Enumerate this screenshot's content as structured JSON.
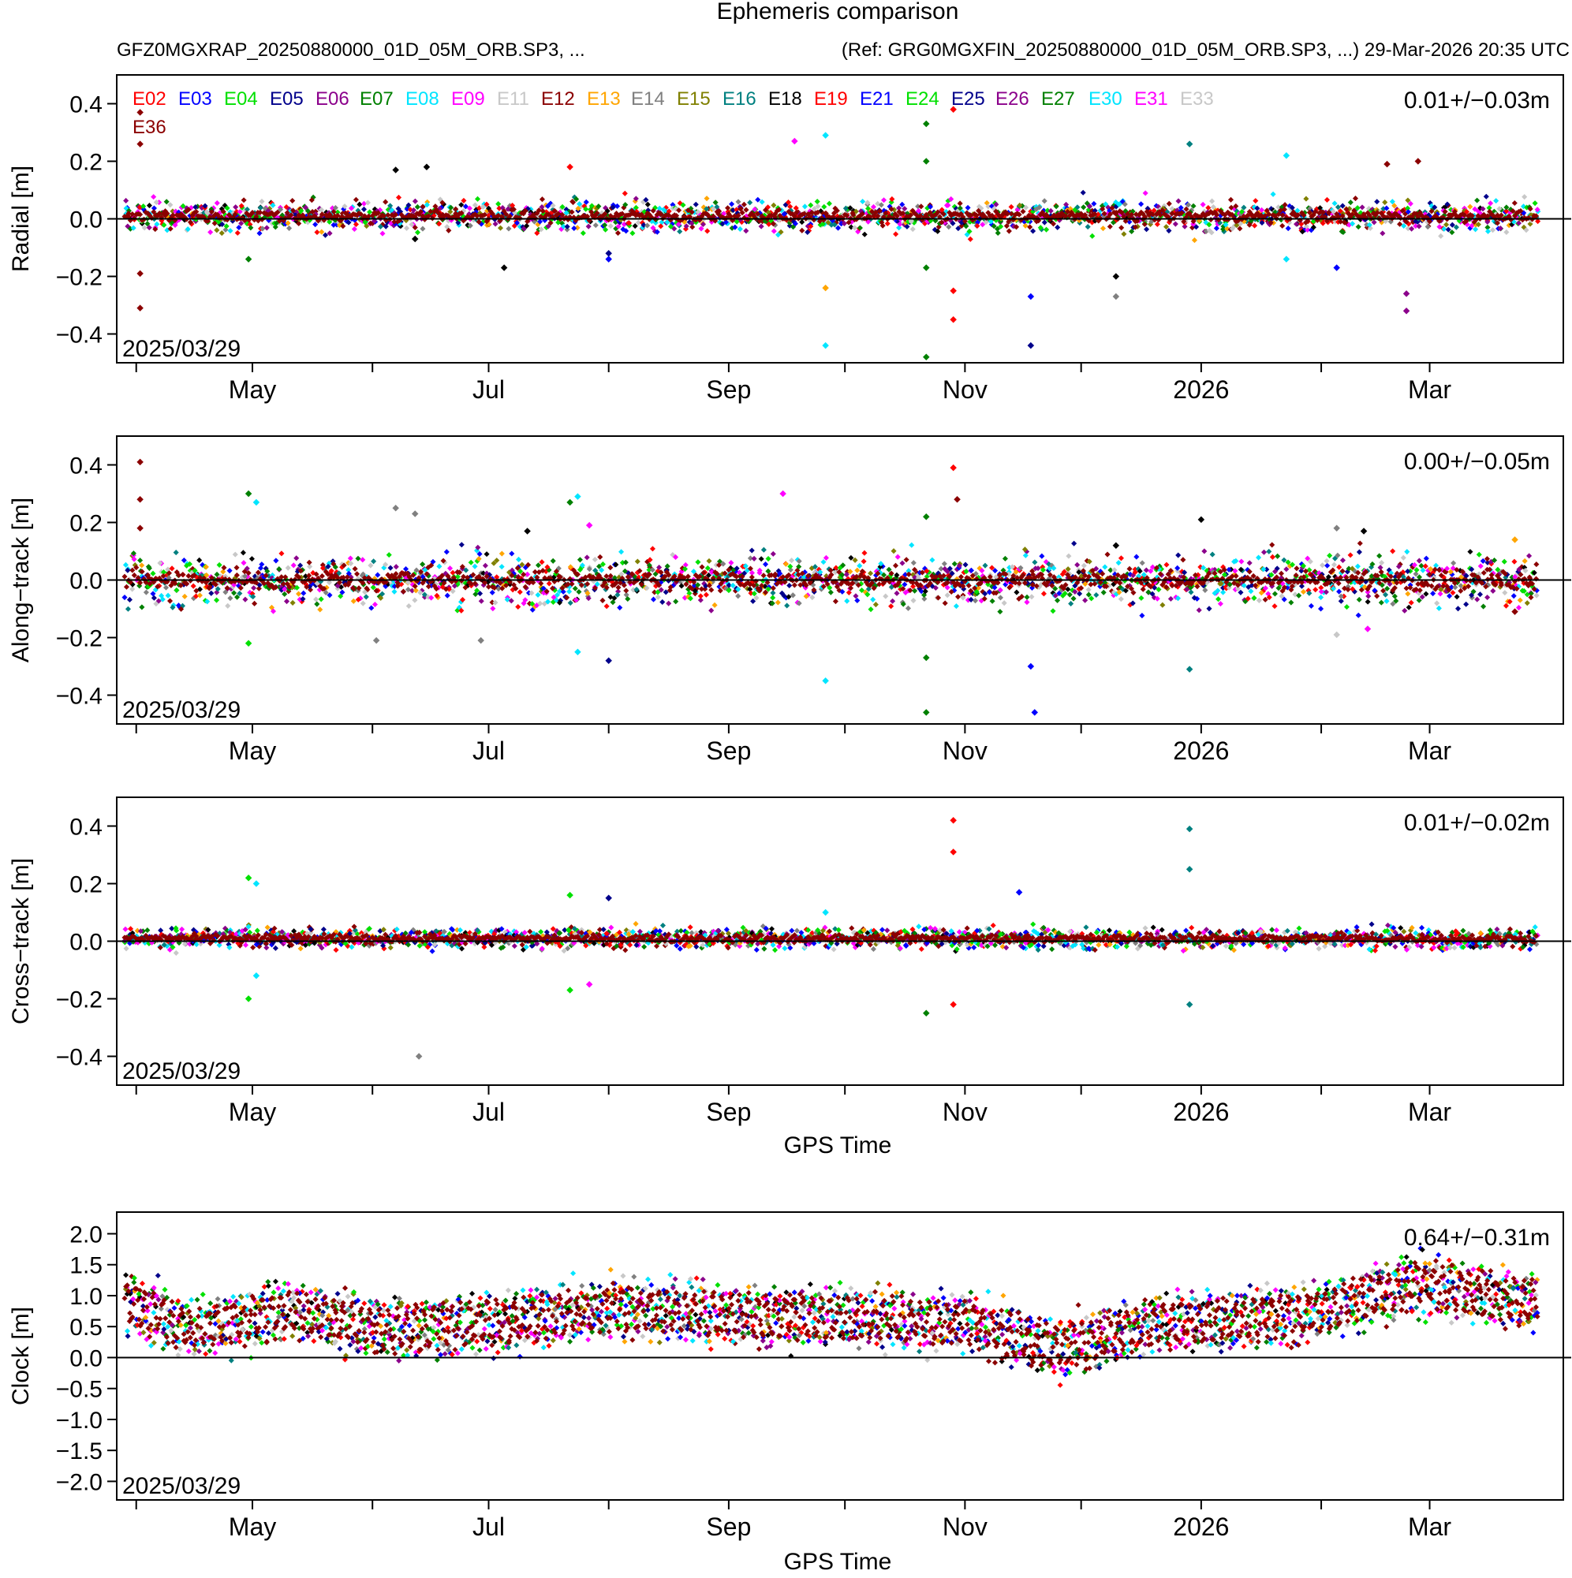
{
  "figure": {
    "title": "Ephemeris comparison",
    "subtitle_left": "GFZ0MGXRAP_20250880000_01D_05M_ORB.SP3, ...",
    "subtitle_right": "(Ref: GRG0MGXFIN_20250880000_01D_05M_ORB.SP3, ...) 29-Mar-2026 20:35 UTC",
    "date_label": "2025/03/29",
    "xlabel": "GPS Time",
    "x_tick_labels": [
      "May",
      "Jul",
      "Sep",
      "Nov",
      "2026",
      "Mar"
    ]
  },
  "legend": [
    {
      "name": "E02",
      "color": "#ff0000"
    },
    {
      "name": "E03",
      "color": "#0000ff"
    },
    {
      "name": "E04",
      "color": "#00e000"
    },
    {
      "name": "E05",
      "color": "#00008b"
    },
    {
      "name": "E06",
      "color": "#8b008b"
    },
    {
      "name": "E07",
      "color": "#008000"
    },
    {
      "name": "E08",
      "color": "#00e5ff"
    },
    {
      "name": "E09",
      "color": "#ff00ff"
    },
    {
      "name": "E11",
      "color": "#c8c8c8"
    },
    {
      "name": "E12",
      "color": "#8b0000"
    },
    {
      "name": "E13",
      "color": "#ffa500"
    },
    {
      "name": "E14",
      "color": "#808080"
    },
    {
      "name": "E15",
      "color": "#808000"
    },
    {
      "name": "E16",
      "color": "#008080"
    },
    {
      "name": "E18",
      "color": "#000000"
    },
    {
      "name": "E19",
      "color": "#ff0000"
    },
    {
      "name": "E21",
      "color": "#0000ff"
    },
    {
      "name": "E24",
      "color": "#00e000"
    },
    {
      "name": "E25",
      "color": "#00008b"
    },
    {
      "name": "E26",
      "color": "#8b008b"
    },
    {
      "name": "E27",
      "color": "#008000"
    },
    {
      "name": "E30",
      "color": "#00e5ff"
    },
    {
      "name": "E31",
      "color": "#ff00ff"
    },
    {
      "name": "E33",
      "color": "#c8c8c8"
    },
    {
      "name": "E36",
      "color": "#8b0000"
    }
  ],
  "chart_data": [
    {
      "type": "scatter",
      "panel": "radial",
      "ylabel": "Radial [m]",
      "stat_label": "0.01+/−0.03m",
      "x_range": [
        "2025-03-29",
        "2026-03-29"
      ],
      "ylim": [
        -0.5,
        0.5
      ],
      "y_ticks": [
        -0.4,
        -0.2,
        0.0,
        0.2,
        0.4
      ],
      "y_tick_labels": [
        "−0.4",
        "−0.2",
        "0.0",
        "0.2",
        "0.4"
      ],
      "band": {
        "mean": 0.01,
        "sd": 0.03
      },
      "outliers": [
        {
          "date": "2025-04-02",
          "y": 0.37,
          "sat": "E36"
        },
        {
          "date": "2025-04-02",
          "y": 0.26,
          "sat": "E36"
        },
        {
          "date": "2025-04-02",
          "y": -0.31,
          "sat": "E36"
        },
        {
          "date": "2025-04-02",
          "y": -0.19,
          "sat": "E36"
        },
        {
          "date": "2025-04-30",
          "y": -0.14,
          "sat": "E07"
        },
        {
          "date": "2025-06-07",
          "y": 0.17,
          "sat": "E18"
        },
        {
          "date": "2025-06-15",
          "y": 0.18,
          "sat": "E18"
        },
        {
          "date": "2025-06-12",
          "y": -0.07,
          "sat": "E18"
        },
        {
          "date": "2025-07-05",
          "y": -0.17,
          "sat": "E18"
        },
        {
          "date": "2025-07-22",
          "y": 0.18,
          "sat": "E02"
        },
        {
          "date": "2025-08-01",
          "y": -0.14,
          "sat": "E21"
        },
        {
          "date": "2025-08-01",
          "y": -0.12,
          "sat": "E05"
        },
        {
          "date": "2025-09-18",
          "y": 0.27,
          "sat": "E09"
        },
        {
          "date": "2025-09-26",
          "y": 0.29,
          "sat": "E08"
        },
        {
          "date": "2025-09-26",
          "y": -0.24,
          "sat": "E13"
        },
        {
          "date": "2025-09-26",
          "y": -0.44,
          "sat": "E08"
        },
        {
          "date": "2025-10-22",
          "y": 0.33,
          "sat": "E27"
        },
        {
          "date": "2025-10-22",
          "y": 0.2,
          "sat": "E27"
        },
        {
          "date": "2025-10-22",
          "y": -0.48,
          "sat": "E27"
        },
        {
          "date": "2025-10-22",
          "y": -0.17,
          "sat": "E27"
        },
        {
          "date": "2025-10-29",
          "y": 0.38,
          "sat": "E19"
        },
        {
          "date": "2025-10-29",
          "y": -0.35,
          "sat": "E19"
        },
        {
          "date": "2025-10-29",
          "y": -0.25,
          "sat": "E19"
        },
        {
          "date": "2025-11-18",
          "y": -0.27,
          "sat": "E21"
        },
        {
          "date": "2025-11-18",
          "y": -0.44,
          "sat": "E05"
        },
        {
          "date": "2025-12-10",
          "y": -0.27,
          "sat": "E14"
        },
        {
          "date": "2025-12-10",
          "y": -0.2,
          "sat": "E18"
        },
        {
          "date": "2025-12-29",
          "y": 0.26,
          "sat": "E16"
        },
        {
          "date": "2026-01-23",
          "y": 0.22,
          "sat": "E08"
        },
        {
          "date": "2026-01-23",
          "y": -0.14,
          "sat": "E08"
        },
        {
          "date": "2026-02-05",
          "y": -0.17,
          "sat": "E03"
        },
        {
          "date": "2026-02-18",
          "y": 0.19,
          "sat": "E36"
        },
        {
          "date": "2026-02-26",
          "y": 0.2,
          "sat": "E36"
        },
        {
          "date": "2026-02-23",
          "y": -0.32,
          "sat": "E26"
        },
        {
          "date": "2026-02-23",
          "y": -0.26,
          "sat": "E26"
        }
      ]
    },
    {
      "type": "scatter",
      "panel": "along-track",
      "ylabel": "Along−track [m]",
      "stat_label": "0.00+/−0.05m",
      "x_range": [
        "2025-03-29",
        "2026-03-29"
      ],
      "ylim": [
        -0.5,
        0.5
      ],
      "y_ticks": [
        -0.4,
        -0.2,
        0.0,
        0.2,
        0.4
      ],
      "y_tick_labels": [
        "−0.4",
        "−0.2",
        "0.0",
        "0.2",
        "0.4"
      ],
      "band": {
        "mean": 0.0,
        "sd": 0.05
      },
      "outliers": [
        {
          "date": "2025-04-02",
          "y": 0.41,
          "sat": "E36"
        },
        {
          "date": "2025-04-02",
          "y": 0.28,
          "sat": "E36"
        },
        {
          "date": "2025-04-02",
          "y": 0.18,
          "sat": "E36"
        },
        {
          "date": "2025-04-30",
          "y": 0.3,
          "sat": "E07"
        },
        {
          "date": "2025-05-02",
          "y": 0.27,
          "sat": "E08"
        },
        {
          "date": "2025-04-30",
          "y": -0.22,
          "sat": "E04"
        },
        {
          "date": "2025-06-07",
          "y": 0.25,
          "sat": "E14"
        },
        {
          "date": "2025-06-12",
          "y": 0.23,
          "sat": "E14"
        },
        {
          "date": "2025-06-02",
          "y": -0.21,
          "sat": "E14"
        },
        {
          "date": "2025-06-29",
          "y": -0.21,
          "sat": "E14"
        },
        {
          "date": "2025-07-11",
          "y": 0.17,
          "sat": "E18"
        },
        {
          "date": "2025-07-22",
          "y": 0.27,
          "sat": "E07"
        },
        {
          "date": "2025-07-24",
          "y": 0.29,
          "sat": "E08"
        },
        {
          "date": "2025-07-24",
          "y": -0.25,
          "sat": "E08"
        },
        {
          "date": "2025-07-27",
          "y": 0.19,
          "sat": "E09"
        },
        {
          "date": "2025-08-01",
          "y": -0.28,
          "sat": "E05"
        },
        {
          "date": "2025-09-15",
          "y": 0.3,
          "sat": "E09"
        },
        {
          "date": "2025-09-26",
          "y": -0.35,
          "sat": "E08"
        },
        {
          "date": "2025-10-22",
          "y": 0.22,
          "sat": "E27"
        },
        {
          "date": "2025-10-22",
          "y": -0.46,
          "sat": "E27"
        },
        {
          "date": "2025-10-22",
          "y": -0.27,
          "sat": "E27"
        },
        {
          "date": "2025-10-29",
          "y": 0.39,
          "sat": "E19"
        },
        {
          "date": "2025-10-30",
          "y": 0.28,
          "sat": "E36"
        },
        {
          "date": "2025-11-19",
          "y": -0.46,
          "sat": "E21"
        },
        {
          "date": "2025-11-18",
          "y": -0.3,
          "sat": "E21"
        },
        {
          "date": "2025-12-10",
          "y": 0.12,
          "sat": "E18"
        },
        {
          "date": "2025-12-29",
          "y": -0.31,
          "sat": "E16"
        },
        {
          "date": "2026-01-01",
          "y": 0.21,
          "sat": "E18"
        },
        {
          "date": "2026-02-05",
          "y": 0.18,
          "sat": "E14"
        },
        {
          "date": "2026-02-05",
          "y": -0.19,
          "sat": "E11"
        },
        {
          "date": "2026-02-12",
          "y": 0.17,
          "sat": "E18"
        },
        {
          "date": "2026-02-13",
          "y": -0.17,
          "sat": "E31"
        },
        {
          "date": "2026-03-23",
          "y": 0.14,
          "sat": "E13"
        },
        {
          "date": "2026-03-23",
          "y": -0.11,
          "sat": "E36"
        }
      ]
    },
    {
      "type": "scatter",
      "panel": "cross-track",
      "ylabel": "Cross−track [m]",
      "stat_label": "0.01+/−0.02m",
      "x_range": [
        "2025-03-29",
        "2026-03-29"
      ],
      "ylim": [
        -0.5,
        0.5
      ],
      "y_ticks": [
        -0.4,
        -0.2,
        0.0,
        0.2,
        0.4
      ],
      "y_tick_labels": [
        "−0.4",
        "−0.2",
        "0.0",
        "0.2",
        "0.4"
      ],
      "band": {
        "mean": 0.01,
        "sd": 0.02
      },
      "outliers": [
        {
          "date": "2025-04-30",
          "y": 0.22,
          "sat": "E04"
        },
        {
          "date": "2025-05-02",
          "y": 0.2,
          "sat": "E08"
        },
        {
          "date": "2025-04-30",
          "y": -0.2,
          "sat": "E04"
        },
        {
          "date": "2025-05-02",
          "y": -0.12,
          "sat": "E08"
        },
        {
          "date": "2025-06-13",
          "y": -0.4,
          "sat": "E14"
        },
        {
          "date": "2025-07-22",
          "y": 0.16,
          "sat": "E04"
        },
        {
          "date": "2025-07-22",
          "y": -0.17,
          "sat": "E04"
        },
        {
          "date": "2025-07-27",
          "y": -0.15,
          "sat": "E31"
        },
        {
          "date": "2025-08-01",
          "y": 0.15,
          "sat": "E05"
        },
        {
          "date": "2025-09-26",
          "y": 0.1,
          "sat": "E08"
        },
        {
          "date": "2025-10-22",
          "y": -0.25,
          "sat": "E27"
        },
        {
          "date": "2025-10-29",
          "y": 0.42,
          "sat": "E19"
        },
        {
          "date": "2025-10-29",
          "y": 0.31,
          "sat": "E19"
        },
        {
          "date": "2025-10-29",
          "y": -0.22,
          "sat": "E19"
        },
        {
          "date": "2025-11-15",
          "y": 0.17,
          "sat": "E03"
        },
        {
          "date": "2025-12-29",
          "y": 0.39,
          "sat": "E16"
        },
        {
          "date": "2025-12-29",
          "y": 0.25,
          "sat": "E16"
        },
        {
          "date": "2025-12-29",
          "y": -0.22,
          "sat": "E16"
        }
      ]
    },
    {
      "type": "scatter",
      "panel": "clock",
      "ylabel": "Clock [m]",
      "stat_label": "0.64+/−0.31m",
      "x_range": [
        "2025-03-29",
        "2026-03-29"
      ],
      "ylim": [
        -2.3,
        2.35
      ],
      "y_ticks": [
        -2.0,
        -1.5,
        -1.0,
        -0.5,
        0.0,
        0.5,
        1.0,
        1.5,
        2.0
      ],
      "y_tick_labels": [
        "−2.0",
        "−1.5",
        "−1.0",
        "−0.5",
        "0.0",
        "0.5",
        "1.0",
        "1.5",
        "2.0"
      ],
      "band": {
        "mean": 0.64,
        "sd": 0.31
      },
      "trend": [
        {
          "date": "2025-03-29",
          "y": 0.9
        },
        {
          "date": "2025-04-15",
          "y": 0.45
        },
        {
          "date": "2025-05-10",
          "y": 0.75
        },
        {
          "date": "2025-06-05",
          "y": 0.45
        },
        {
          "date": "2025-07-01",
          "y": 0.55
        },
        {
          "date": "2025-08-01",
          "y": 0.8
        },
        {
          "date": "2025-09-01",
          "y": 0.7
        },
        {
          "date": "2025-10-01",
          "y": 0.65
        },
        {
          "date": "2025-11-01",
          "y": 0.55
        },
        {
          "date": "2025-11-25",
          "y": 0.15
        },
        {
          "date": "2025-12-20",
          "y": 0.55
        },
        {
          "date": "2026-01-10",
          "y": 0.6
        },
        {
          "date": "2026-02-01",
          "y": 0.75
        },
        {
          "date": "2026-02-25",
          "y": 1.2
        },
        {
          "date": "2026-03-25",
          "y": 0.9
        }
      ]
    }
  ]
}
